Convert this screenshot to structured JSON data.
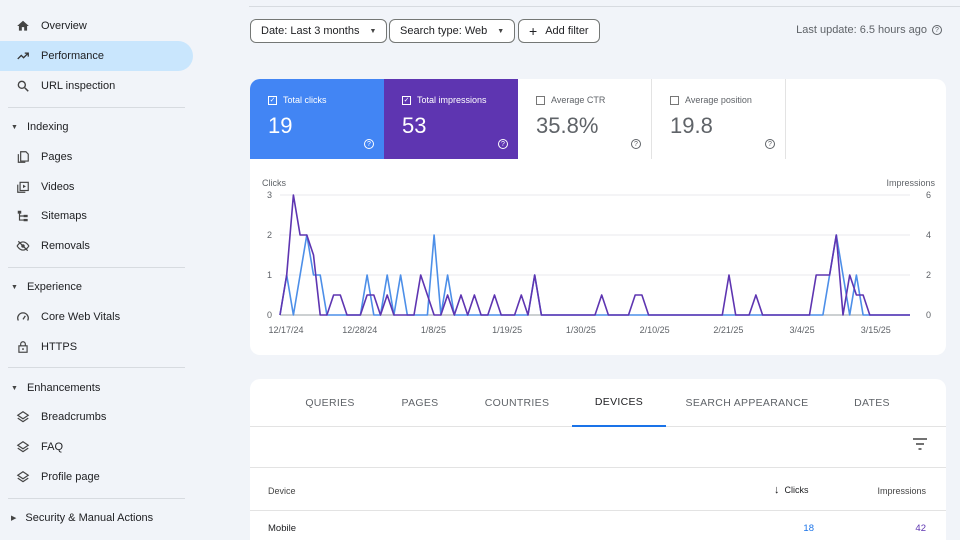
{
  "sidebar": {
    "items": [
      {
        "label": "Overview",
        "icon": "home-icon",
        "active": false
      },
      {
        "label": "Performance",
        "icon": "trending-up-icon",
        "active": true
      },
      {
        "label": "URL inspection",
        "icon": "search-icon",
        "active": false
      }
    ],
    "sections": [
      {
        "title": "Indexing",
        "items": [
          {
            "label": "Pages",
            "icon": "pages-icon"
          },
          {
            "label": "Videos",
            "icon": "video-icon"
          },
          {
            "label": "Sitemaps",
            "icon": "sitemap-icon"
          },
          {
            "label": "Removals",
            "icon": "eye-off-icon"
          }
        ]
      },
      {
        "title": "Experience",
        "items": [
          {
            "label": "Core Web Vitals",
            "icon": "speed-icon"
          },
          {
            "label": "HTTPS",
            "icon": "lock-icon"
          }
        ]
      },
      {
        "title": "Enhancements",
        "items": [
          {
            "label": "Breadcrumbs",
            "icon": "layers-icon"
          },
          {
            "label": "FAQ",
            "icon": "layers-icon"
          },
          {
            "label": "Profile page",
            "icon": "layers-icon"
          }
        ]
      },
      {
        "title": "Security & Manual Actions",
        "items": []
      }
    ]
  },
  "filters": {
    "date": "Date: Last 3 months",
    "search_type": "Search type: Web",
    "add_filter": "Add filter",
    "last_update": "Last update: 6.5 hours ago"
  },
  "metrics": [
    {
      "label": "Total clicks",
      "value": "19",
      "checked": true,
      "color": "#4285f4"
    },
    {
      "label": "Total impressions",
      "value": "53",
      "checked": true,
      "color": "#5e35b1"
    },
    {
      "label": "Average CTR",
      "value": "35.8%",
      "checked": false
    },
    {
      "label": "Average position",
      "value": "19.8",
      "checked": false
    }
  ],
  "chart_data": {
    "type": "line",
    "left_axis_label": "Clicks",
    "right_axis_label": "Impressions",
    "left_ticks": [
      "0",
      "1",
      "2",
      "3"
    ],
    "right_ticks": [
      "0",
      "2",
      "4",
      "6"
    ],
    "left_range": [
      0,
      3
    ],
    "right_range": [
      0,
      6
    ],
    "x_ticks": [
      "12/17/24",
      "12/28/24",
      "1/8/25",
      "1/19/25",
      "1/30/25",
      "2/10/25",
      "2/21/25",
      "3/4/25",
      "3/15/25"
    ],
    "num_days": 95,
    "series": [
      {
        "name": "Clicks",
        "color": "#4d8fe8",
        "axis": "left",
        "values": [
          0,
          1,
          0,
          1,
          2,
          1,
          1,
          0,
          0,
          0,
          0,
          0,
          0,
          1,
          0,
          0,
          1,
          0,
          1,
          0,
          0,
          0,
          0,
          2,
          0,
          1,
          0,
          0,
          0,
          0,
          0,
          0,
          0,
          0,
          0,
          0,
          0,
          0,
          1,
          0,
          0,
          0,
          0,
          0,
          0,
          0,
          0,
          0,
          0,
          0,
          0,
          0,
          0,
          0,
          0,
          0,
          0,
          0,
          0,
          0,
          0,
          0,
          0,
          0,
          0,
          0,
          0,
          0,
          0,
          0,
          0,
          0,
          0,
          0,
          0,
          0,
          0,
          0,
          0,
          0,
          0,
          0,
          1,
          2,
          1,
          0,
          1,
          0,
          0,
          0,
          0,
          0,
          0,
          0,
          0
        ]
      },
      {
        "name": "Impressions",
        "color": "#5e35b1",
        "axis": "right",
        "values": [
          0,
          2,
          6,
          4,
          4,
          3,
          0,
          0,
          1,
          1,
          0,
          0,
          0,
          1,
          1,
          0,
          1,
          0,
          0,
          0,
          0,
          2,
          1,
          0,
          0,
          1,
          0,
          1,
          0,
          1,
          0,
          0,
          1,
          0,
          0,
          0,
          1,
          0,
          2,
          0,
          0,
          0,
          0,
          0,
          0,
          0,
          0,
          0,
          1,
          0,
          0,
          0,
          0,
          1,
          1,
          0,
          0,
          0,
          0,
          0,
          0,
          0,
          0,
          0,
          0,
          0,
          0,
          2,
          0,
          0,
          0,
          1,
          0,
          0,
          0,
          0,
          0,
          0,
          0,
          0,
          2,
          2,
          2,
          4,
          0,
          2,
          1,
          1,
          0,
          0,
          0,
          0,
          0,
          0,
          0
        ]
      }
    ]
  },
  "tabs": [
    {
      "label": "QUERIES",
      "active": false
    },
    {
      "label": "PAGES",
      "active": false
    },
    {
      "label": "COUNTRIES",
      "active": false
    },
    {
      "label": "DEVICES",
      "active": true
    },
    {
      "label": "SEARCH APPEARANCE",
      "active": false
    },
    {
      "label": "DATES",
      "active": false
    }
  ],
  "table": {
    "columns": [
      "Device",
      "Clicks",
      "Impressions"
    ],
    "sort_icon": "arrow-down-icon",
    "rows": [
      {
        "device": "Mobile",
        "clicks": "18",
        "impressions": "42"
      }
    ]
  }
}
